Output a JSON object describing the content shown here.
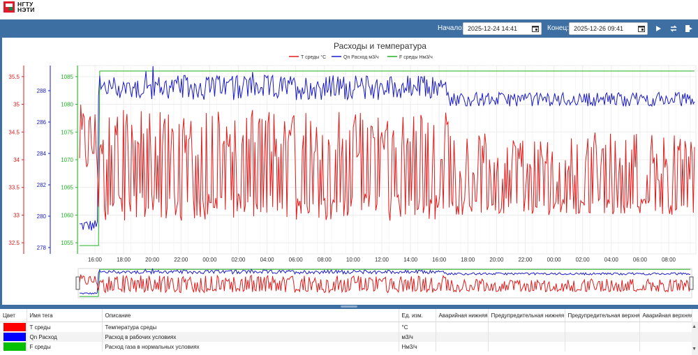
{
  "app": {
    "logo_line1": "НГТУ",
    "logo_line2": "НЭТИ"
  },
  "toolbar": {
    "start_label": "Начало:",
    "start_value": "2025-12-24 14:41",
    "end_label": "Конец:",
    "end_value": "2025-12-26 09:41",
    "icons": [
      "calendar-icon",
      "calendar-icon",
      "play-icon",
      "refresh-icon",
      "export-icon"
    ]
  },
  "colors": {
    "accent": "#3d6fa3",
    "temp": "#e31a1a",
    "flow": "#1a1acc",
    "norm_flow": "#21b321"
  },
  "chart_data": {
    "type": "line",
    "title": "Расходы и температура",
    "legend": [
      "T среды °C",
      "Qn Расход м3/ч",
      "F среды Нм3/ч"
    ],
    "legend_position": "top",
    "grid": true,
    "x_ticks": [
      "16:00",
      "18:00",
      "20:00",
      "22:00",
      "00:00",
      "02:00",
      "04:00",
      "06:00",
      "08:00",
      "10:00",
      "12:00",
      "14:00",
      "16:00",
      "18:00",
      "20:00",
      "22:00",
      "00:00",
      "02:00",
      "04:00",
      "06:00",
      "08:00"
    ],
    "axes": [
      {
        "name": "T среды °C",
        "color": "#e31a1a",
        "ticks": [
          "35.5",
          "35",
          "34.5",
          "34",
          "33.5",
          "33",
          "32.5"
        ],
        "ylim": [
          32.3,
          35.7
        ]
      },
      {
        "name": "Qn Расход м3/ч",
        "color": "#1a1acc",
        "ticks": [
          "288",
          "286",
          "284",
          "282",
          "280",
          "278"
        ],
        "ylim": [
          277.6,
          289.6
        ]
      },
      {
        "name": "F среды Нм3/ч",
        "color": "#21b321",
        "ticks": [
          "1085",
          "1080",
          "1075",
          "1070",
          "1065",
          "1060",
          "1055"
        ],
        "ylim": [
          1053,
          1087
        ]
      }
    ],
    "series": [
      {
        "name": "T среды °C",
        "description": "noisy oscillation mostly between 32.5 and 35, spike to ~35 near start, calmer after 14:00 day 2",
        "range": [
          32.5,
          35.2
        ]
      },
      {
        "name": "Qn Расход м3/ч",
        "description": "starts ~279 for first 0.5h, then oscillates 287–289, calmer ~287.3 after 16:00 day 2",
        "range": [
          278.6,
          289.2
        ]
      },
      {
        "name": "F среды Нм3/ч",
        "description": "~1054.5 until ~15:30, then constant ~1086",
        "values_start": 1054.5,
        "values_end": 1086
      }
    ]
  },
  "table": {
    "headers": [
      "Цвет",
      "Имя тега",
      "Описание",
      "Ед. изм.",
      "Аварийная нижняя",
      "Предупредительная нижняя",
      "Предупредительная верхняя",
      "Аварийная верхняя"
    ],
    "rows": [
      {
        "color": "#ff0000",
        "tag": "T среды",
        "desc": "Температура среды",
        "unit": "°C"
      },
      {
        "color": "#0000ff",
        "tag": "Qn Расход",
        "desc": "Расход в рабочих условиях",
        "unit": "м3/ч"
      },
      {
        "color": "#00c000",
        "tag": "F среды",
        "desc": "Расход газа в нормальных условиях",
        "unit": "Нм3/ч"
      }
    ]
  }
}
